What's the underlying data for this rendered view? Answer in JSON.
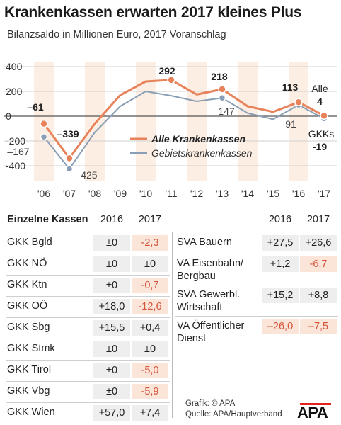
{
  "header": {
    "title": "Krankenkassen erwarten 2017 kleines Plus",
    "subtitle": "Bilanzsaldo in Millionen Euro, 2017 Voranschlag"
  },
  "chart_data": {
    "type": "line",
    "x": [
      "'06",
      "'07",
      "'08",
      "'09",
      "'10",
      "'11",
      "'12",
      "'13",
      "'14",
      "'15",
      "'16",
      "'17"
    ],
    "ylim": [
      -450,
      450
    ],
    "yticks": [
      "400",
      "200",
      "0",
      "-200",
      "-400"
    ],
    "series": [
      {
        "name": "Alle Krankenkassen",
        "color": "#e8825a",
        "values": [
          -61,
          -339,
          -60,
          170,
          280,
          292,
          175,
          218,
          80,
          35,
          113,
          4
        ]
      },
      {
        "name": "Gebietskrankenkassen",
        "color": "#8a9fb5",
        "values": [
          -167,
          -425,
          -130,
          80,
          200,
          165,
          120,
          147,
          25,
          -25,
          91,
          -19
        ]
      }
    ],
    "labels": {
      "a06": "–61",
      "a07": "–339",
      "a11": "292",
      "a13": "218",
      "a16": "113",
      "a17_name": "Alle",
      "a17": "4",
      "g06": "–167",
      "g07": "–425",
      "g13": "147",
      "g16": "91",
      "g17_name": "GKKs",
      "g17": "-19"
    },
    "legend_position": "center-right"
  },
  "table_left": {
    "heading": "Einzelne Kassen",
    "col2016": "2016",
    "col2017": "2017",
    "rows": [
      {
        "name": "GKK Bgld",
        "v2016": "±0",
        "v2017": "-2,3",
        "neg": true
      },
      {
        "name": "GKK NÖ",
        "v2016": "±0",
        "v2017": "±0",
        "neg": false
      },
      {
        "name": "GKK Ktn",
        "v2016": "±0",
        "v2017": "-0,7",
        "neg": true
      },
      {
        "name": "GKK OÖ",
        "v2016": "+18,0",
        "v2017": "-12,6",
        "neg": true
      },
      {
        "name": "GKK Sbg",
        "v2016": "+15,5",
        "v2017": "+0,4",
        "neg": false
      },
      {
        "name": "GKK Stmk",
        "v2016": "±0",
        "v2017": "±0",
        "neg": false
      },
      {
        "name": "GKK Tirol",
        "v2016": "±0",
        "v2017": "-5,0",
        "neg": true
      },
      {
        "name": "GKK Vbg",
        "v2016": "±0",
        "v2017": "-5,9",
        "neg": true
      },
      {
        "name": "GKK Wien",
        "v2016": "+57,0",
        "v2017": "+7,4",
        "neg": false
      }
    ]
  },
  "table_right": {
    "col2016": "2016",
    "col2017": "2017",
    "rows": [
      {
        "line1": "SVA Bauern",
        "line2": "",
        "v2016": "+27,5",
        "v2017": "+26,6",
        "neg16": false,
        "neg17": false
      },
      {
        "line1": "VA Eisenbahn/",
        "line2": "Bergbau",
        "v2016": "+1,2",
        "v2017": "-6,7",
        "neg16": false,
        "neg17": true
      },
      {
        "line1": "SVA Gewerbl.",
        "line2": "Wirtschaft",
        "v2016": "+15,2",
        "v2017": "+8,8",
        "neg16": false,
        "neg17": false
      },
      {
        "line1": "VA Öffentlicher",
        "line2": "Dienst",
        "v2016": "–26,0",
        "v2017": "–7,5",
        "neg16": true,
        "neg17": true
      }
    ]
  },
  "footer": {
    "credit": "Grafik: © APA",
    "source": "Quelle: APA/Hauptverband",
    "logo": "APA"
  }
}
